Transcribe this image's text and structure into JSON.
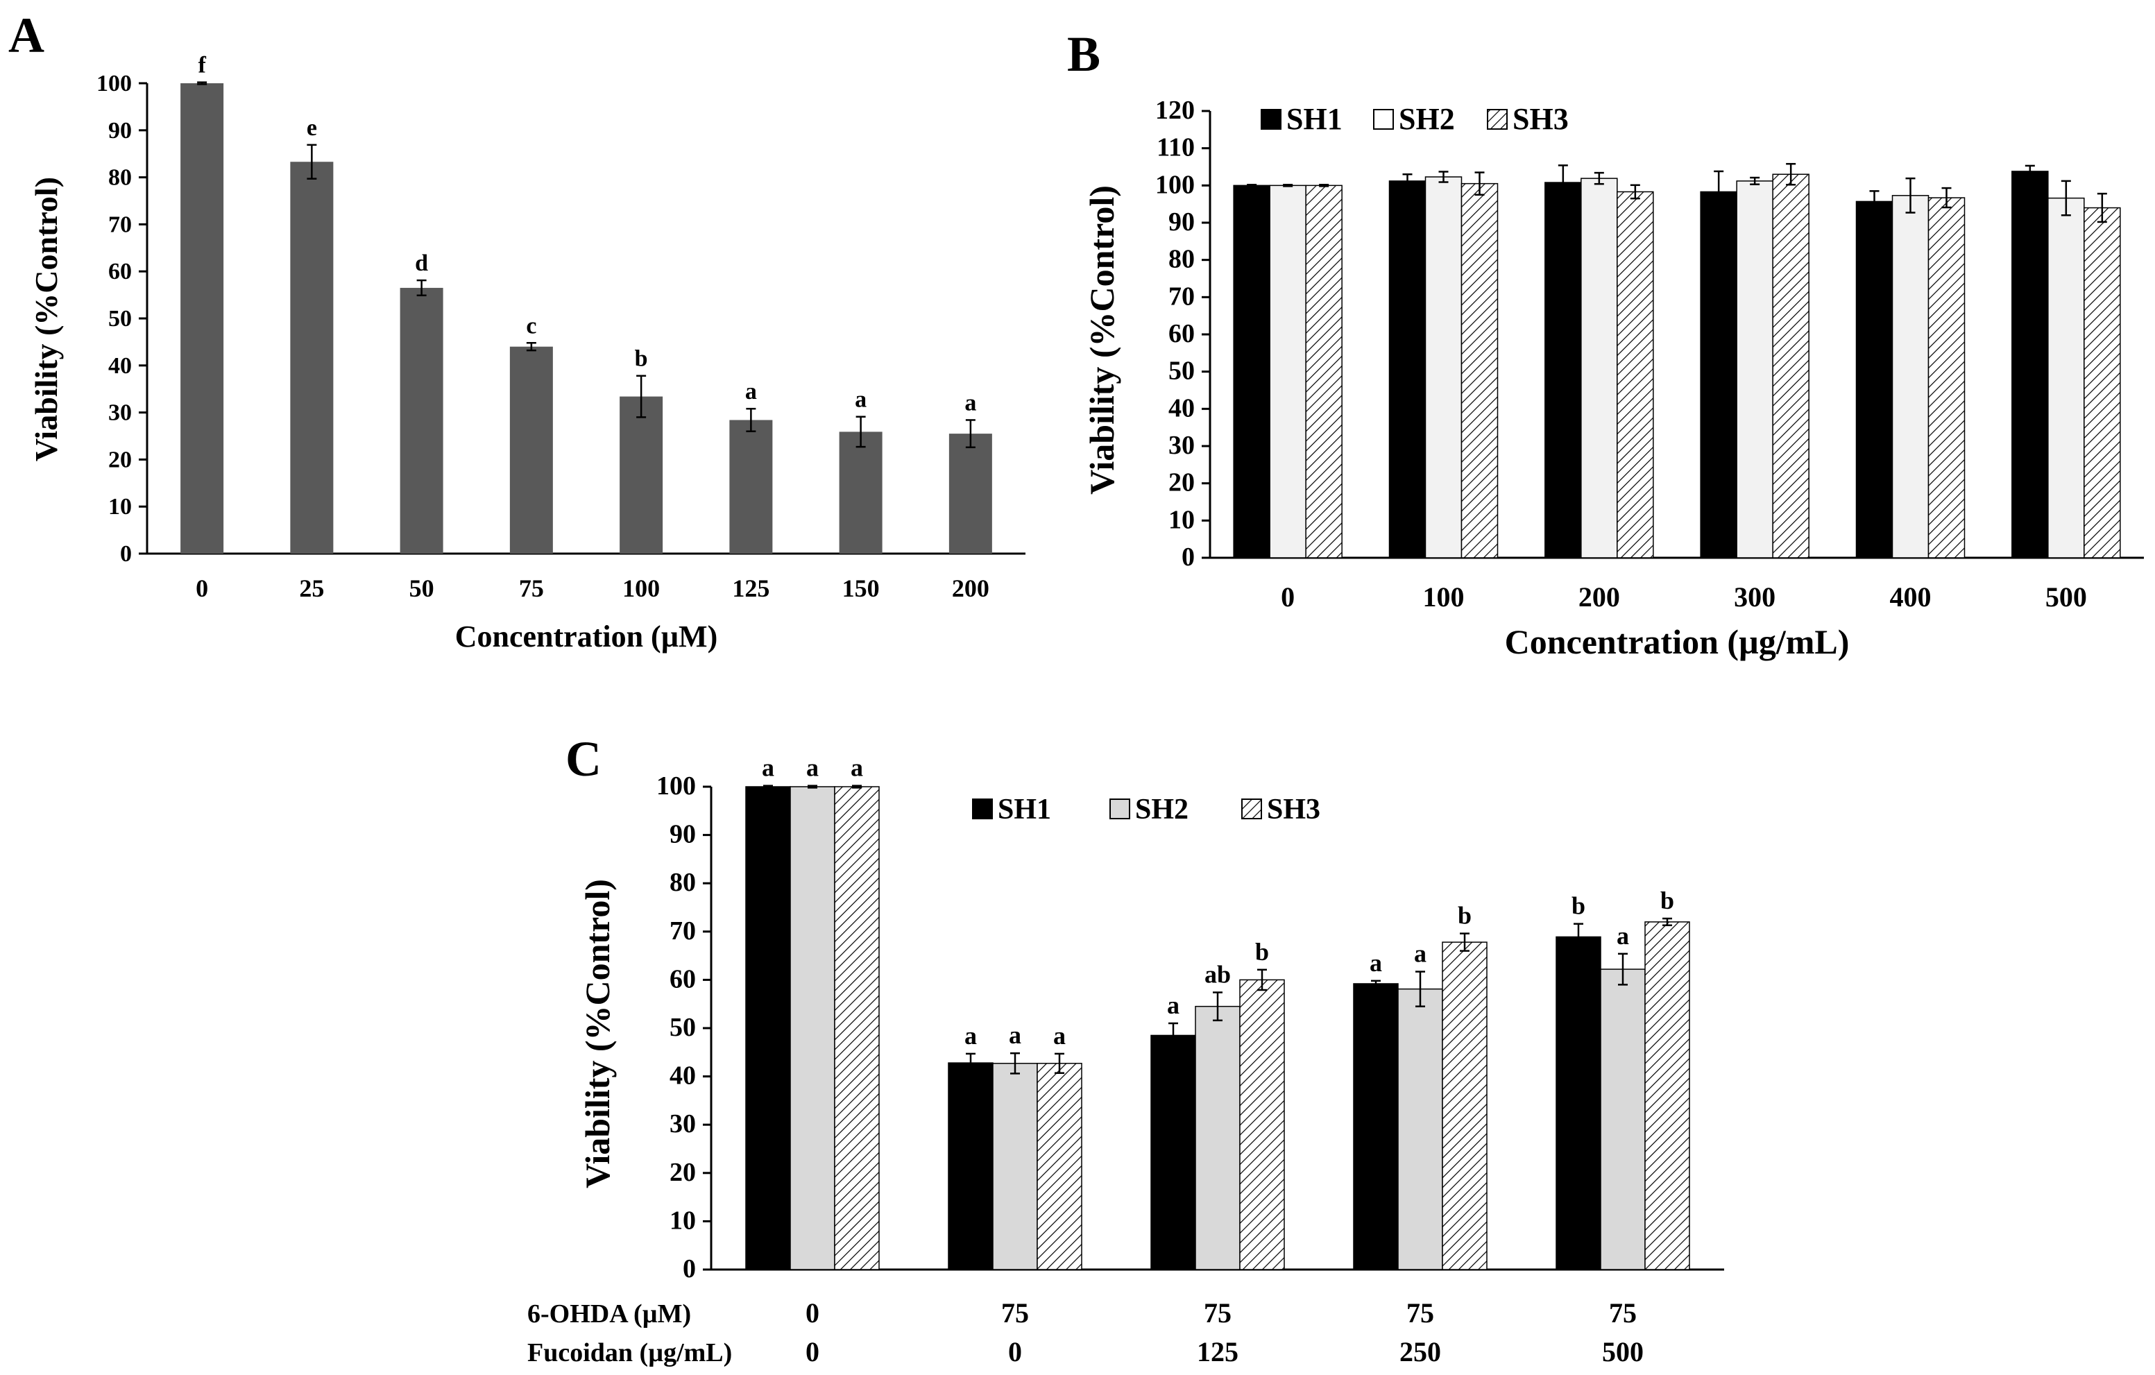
{
  "colors": {
    "a_bar": "#595959",
    "sh1": "#000000",
    "sh2": "#f2f2f2",
    "sh2_c": "#d9d9d9",
    "sh3_bg": "#ffffff",
    "axis": "#000000"
  },
  "chart_data": [
    {
      "panel": "A",
      "type": "bar",
      "panel_label": "A",
      "xlabel": "Concentration (µM)",
      "ylabel": "Viability (%Control)",
      "ylim": [
        0,
        100
      ],
      "yticks": [
        0,
        10,
        20,
        30,
        40,
        50,
        60,
        70,
        80,
        90,
        100
      ],
      "categories": [
        "0",
        "25",
        "50",
        "75",
        "100",
        "125",
        "150",
        "200"
      ],
      "values": [
        100,
        83.3,
        56.5,
        44,
        33.4,
        28.4,
        25.9,
        25.5
      ],
      "errors": [
        0.2,
        3.6,
        1.6,
        0.8,
        4.4,
        2.4,
        3.2,
        2.9
      ],
      "significance": [
        "f",
        "e",
        "d",
        "c",
        "b",
        "a",
        "a",
        "a"
      ]
    },
    {
      "panel": "B",
      "type": "bar",
      "panel_label": "B",
      "xlabel": "Concentration (µg/mL)",
      "ylabel": "Viability (%Control)",
      "ylim": [
        0,
        120
      ],
      "yticks": [
        0,
        10,
        20,
        30,
        40,
        50,
        60,
        70,
        80,
        90,
        100,
        110,
        120
      ],
      "categories": [
        "0",
        "100",
        "200",
        "300",
        "400",
        "500"
      ],
      "legend": [
        "SH1",
        "SH2",
        "SH3"
      ],
      "series": [
        {
          "name": "SH1",
          "values": [
            100,
            101.2,
            100.8,
            98.3,
            95.7,
            103.8
          ],
          "errors": [
            0.2,
            1.8,
            4.6,
            5.5,
            2.8,
            1.5
          ]
        },
        {
          "name": "SH2",
          "values": [
            100,
            102.3,
            101.9,
            101.2,
            97.3,
            96.6
          ],
          "errors": [
            0.2,
            1.4,
            1.5,
            0.9,
            4.6,
            4.6
          ]
        },
        {
          "name": "SH3",
          "values": [
            100,
            100.5,
            98.3,
            103.0,
            96.7,
            94.0
          ],
          "errors": [
            0.2,
            3.0,
            1.8,
            2.8,
            2.6,
            3.8
          ]
        }
      ]
    },
    {
      "panel": "C",
      "type": "bar",
      "panel_label": "C",
      "ylabel": "Viability (%Control)",
      "ylim": [
        0,
        100
      ],
      "yticks": [
        0,
        10,
        20,
        30,
        40,
        50,
        60,
        70,
        80,
        90,
        100
      ],
      "row_labels": [
        "6-OHDA (µM)",
        "Fucoidan (µg/mL)"
      ],
      "categories_row1": [
        "0",
        "75",
        "75",
        "75",
        "75"
      ],
      "categories_row2": [
        "0",
        "0",
        "125",
        "250",
        "500"
      ],
      "legend": [
        "SH1",
        "SH2",
        "SH3"
      ],
      "series": [
        {
          "name": "SH1",
          "values": [
            100,
            42.8,
            48.5,
            59.2,
            68.9
          ],
          "errors": [
            0.2,
            1.9,
            2.5,
            0.6,
            2.7
          ],
          "significance": [
            "a",
            "a",
            "a",
            "a",
            "b"
          ]
        },
        {
          "name": "SH2",
          "values": [
            100,
            42.7,
            54.5,
            58.1,
            62.2
          ],
          "errors": [
            0.2,
            2.1,
            2.9,
            3.6,
            3.2
          ],
          "significance": [
            "a",
            "a",
            "ab",
            "a",
            "a"
          ]
        },
        {
          "name": "SH3",
          "values": [
            100,
            42.7,
            60.0,
            67.8,
            72.0
          ],
          "errors": [
            0.2,
            2.0,
            2.1,
            1.8,
            0.7
          ],
          "significance": [
            "a",
            "a",
            "b",
            "b",
            "b"
          ]
        }
      ]
    }
  ]
}
